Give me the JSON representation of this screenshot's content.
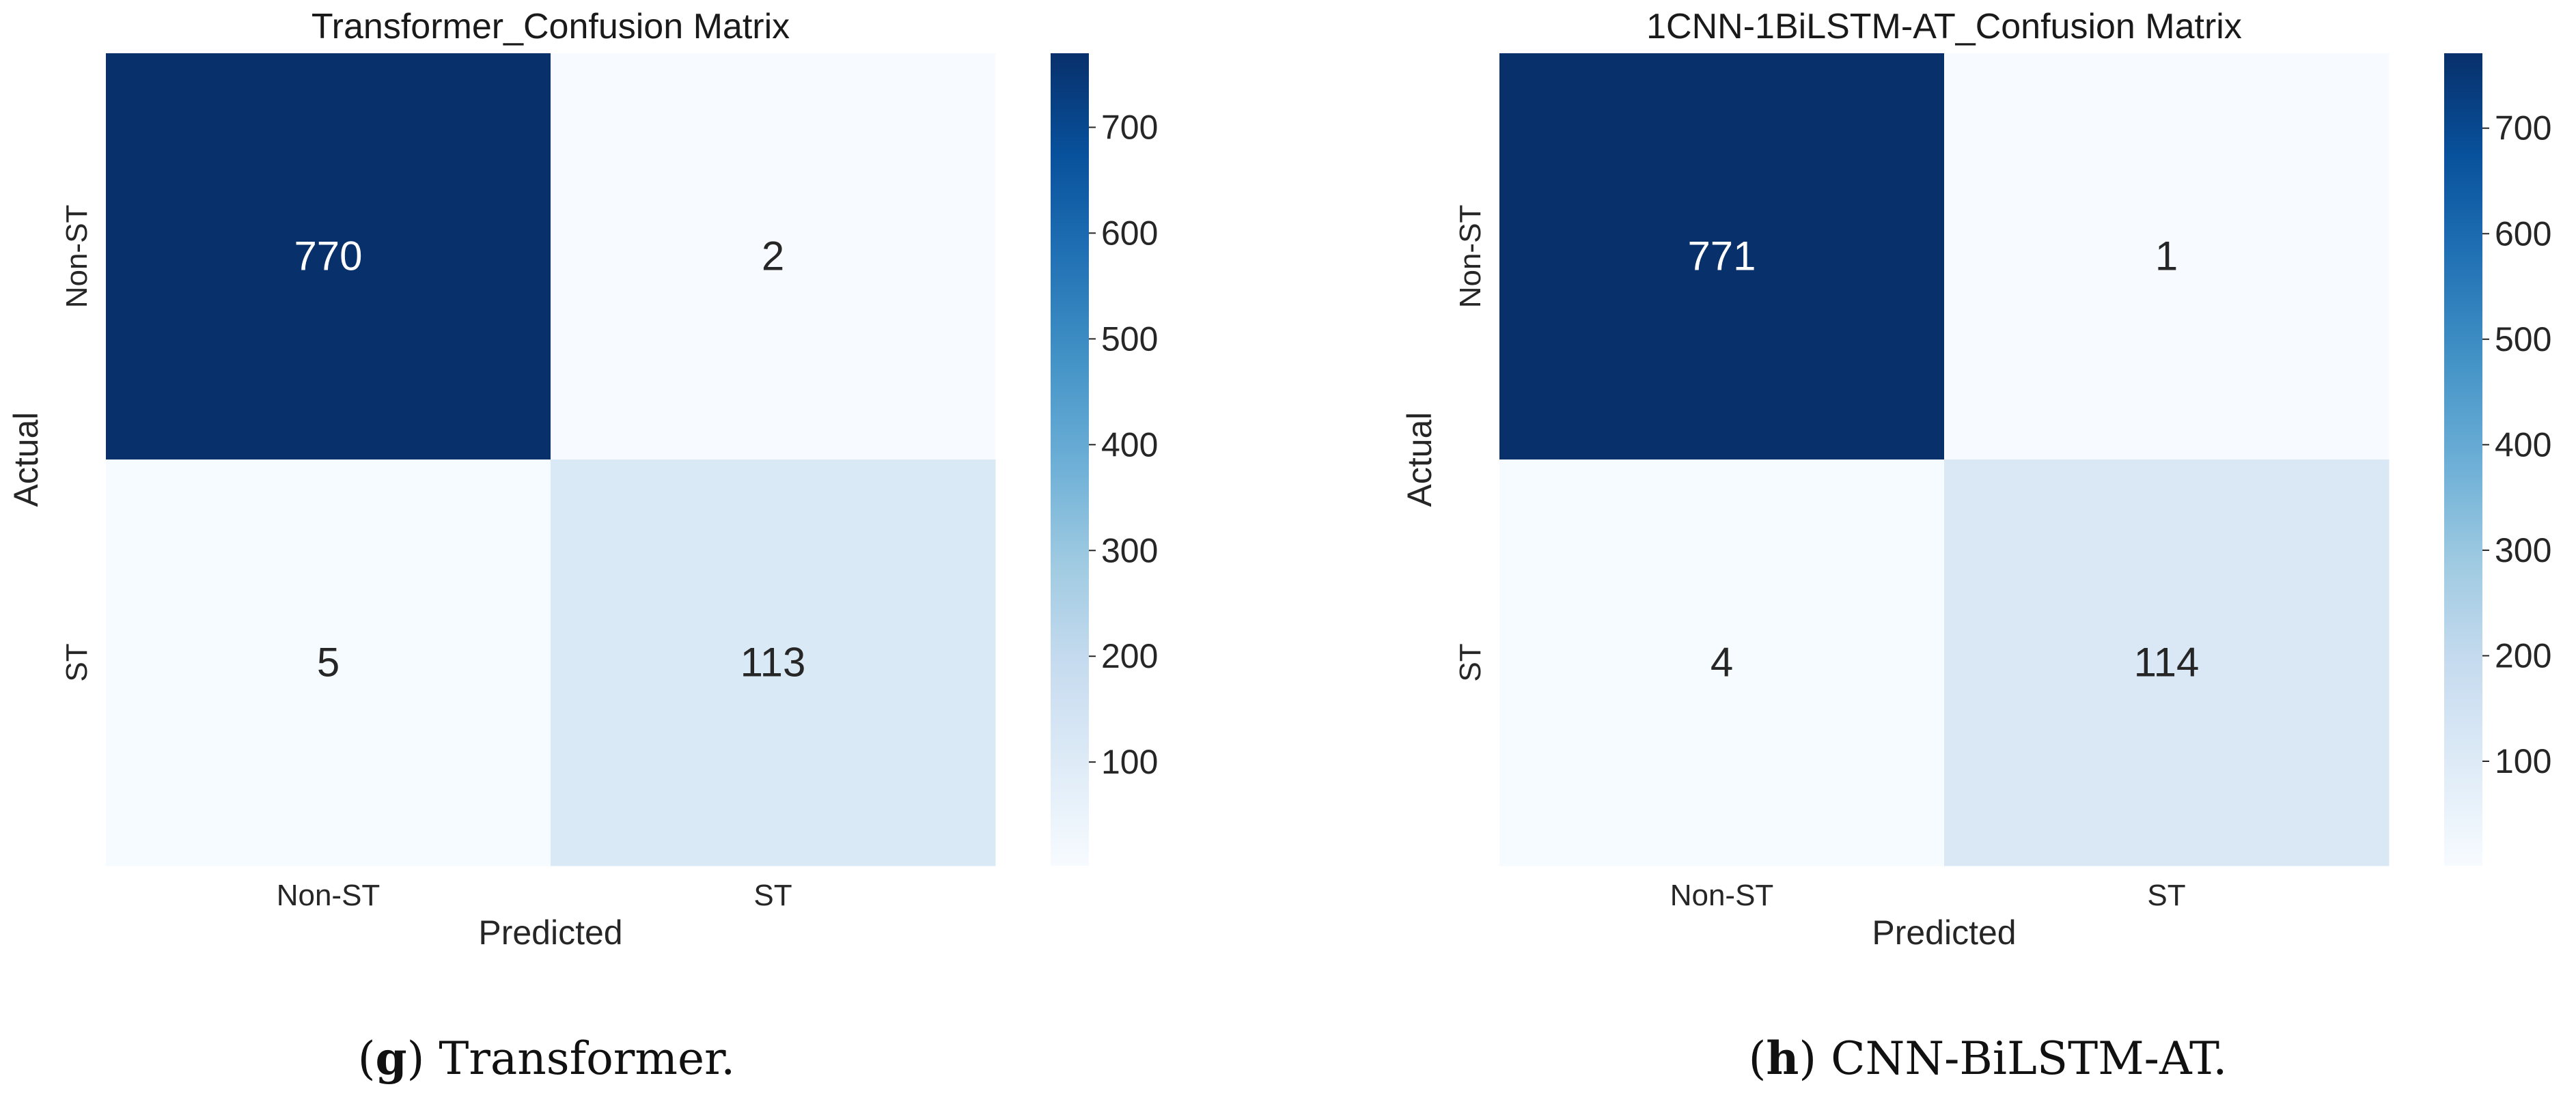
{
  "chart_data": [
    {
      "type": "heatmap",
      "title": "Transformer_Confusion Matrix",
      "xlabel": "Predicted",
      "ylabel": "Actual",
      "x_categories": [
        "Non-ST",
        "ST"
      ],
      "y_categories": [
        "Non-ST",
        "ST"
      ],
      "values": [
        [
          770,
          2
        ],
        [
          5,
          113
        ]
      ],
      "colorbar": {
        "range": [
          2,
          770
        ],
        "ticks": [
          100,
          200,
          300,
          400,
          500,
          600,
          700
        ],
        "colormap": "Blues"
      },
      "caption": {
        "letter": "g",
        "text": "Transformer."
      }
    },
    {
      "type": "heatmap",
      "title": "1CNN-1BiLSTM-AT_Confusion Matrix",
      "xlabel": "Predicted",
      "ylabel": "Actual",
      "x_categories": [
        "Non-ST",
        "ST"
      ],
      "y_categories": [
        "Non-ST",
        "ST"
      ],
      "values": [
        [
          771,
          1
        ],
        [
          4,
          114
        ]
      ],
      "colorbar": {
        "range": [
          1,
          771
        ],
        "ticks": [
          100,
          200,
          300,
          400,
          500,
          600,
          700
        ],
        "colormap": "Blues"
      },
      "caption": {
        "letter": "h",
        "text": "CNN-BiLSTM-AT."
      }
    }
  ]
}
